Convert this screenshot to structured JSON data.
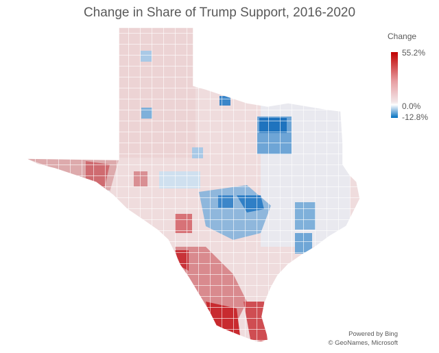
{
  "title": "Change in Share of Trump Support, 2016-2020",
  "legend": {
    "title": "Change",
    "max_label": "55.2%",
    "mid_label": "0.0%",
    "min_label": "-12.8%",
    "colors": {
      "max": "#c00000",
      "mid": "#ffffff",
      "min": "#0070c0"
    }
  },
  "credits": {
    "line1": "Powered by Bing",
    "line2": "© GeoNames, Microsoft"
  }
}
